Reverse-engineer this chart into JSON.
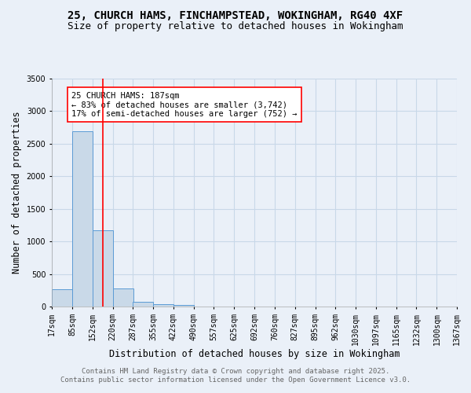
{
  "title1": "25, CHURCH HAMS, FINCHAMPSTEAD, WOKINGHAM, RG40 4XF",
  "title2": "Size of property relative to detached houses in Wokingham",
  "xlabel": "Distribution of detached houses by size in Wokingham",
  "ylabel": "Number of detached properties",
  "bin_labels": [
    "17sqm",
    "85sqm",
    "152sqm",
    "220sqm",
    "287sqm",
    "355sqm",
    "422sqm",
    "490sqm",
    "557sqm",
    "625sqm",
    "692sqm",
    "760sqm",
    "827sqm",
    "895sqm",
    "962sqm",
    "1030sqm",
    "1097sqm",
    "1165sqm",
    "1232sqm",
    "1300sqm",
    "1367sqm"
  ],
  "bin_edges": [
    17,
    85,
    152,
    220,
    287,
    355,
    422,
    490,
    557,
    625,
    692,
    760,
    827,
    895,
    962,
    1030,
    1097,
    1165,
    1232,
    1300,
    1367
  ],
  "bar_values": [
    265,
    2690,
    1175,
    280,
    75,
    40,
    30,
    0,
    0,
    0,
    0,
    0,
    0,
    0,
    0,
    0,
    0,
    0,
    0,
    0
  ],
  "bar_color": "#c9d9e8",
  "bar_edge_color": "#5b9bd5",
  "grid_color": "#c8d8e8",
  "background_color": "#eaf0f8",
  "red_line_x": 187,
  "annotation_text": "25 CHURCH HAMS: 187sqm\n← 83% of detached houses are smaller (3,742)\n17% of semi-detached houses are larger (752) →",
  "ylim": [
    0,
    3500
  ],
  "yticks": [
    0,
    500,
    1000,
    1500,
    2000,
    2500,
    3000,
    3500
  ],
  "footer1": "Contains HM Land Registry data © Crown copyright and database right 2025.",
  "footer2": "Contains public sector information licensed under the Open Government Licence v3.0.",
  "title1_fontsize": 10,
  "title2_fontsize": 9,
  "xlabel_fontsize": 8.5,
  "ylabel_fontsize": 8.5,
  "tick_fontsize": 7,
  "annotation_fontsize": 7.5,
  "footer_fontsize": 6.5
}
